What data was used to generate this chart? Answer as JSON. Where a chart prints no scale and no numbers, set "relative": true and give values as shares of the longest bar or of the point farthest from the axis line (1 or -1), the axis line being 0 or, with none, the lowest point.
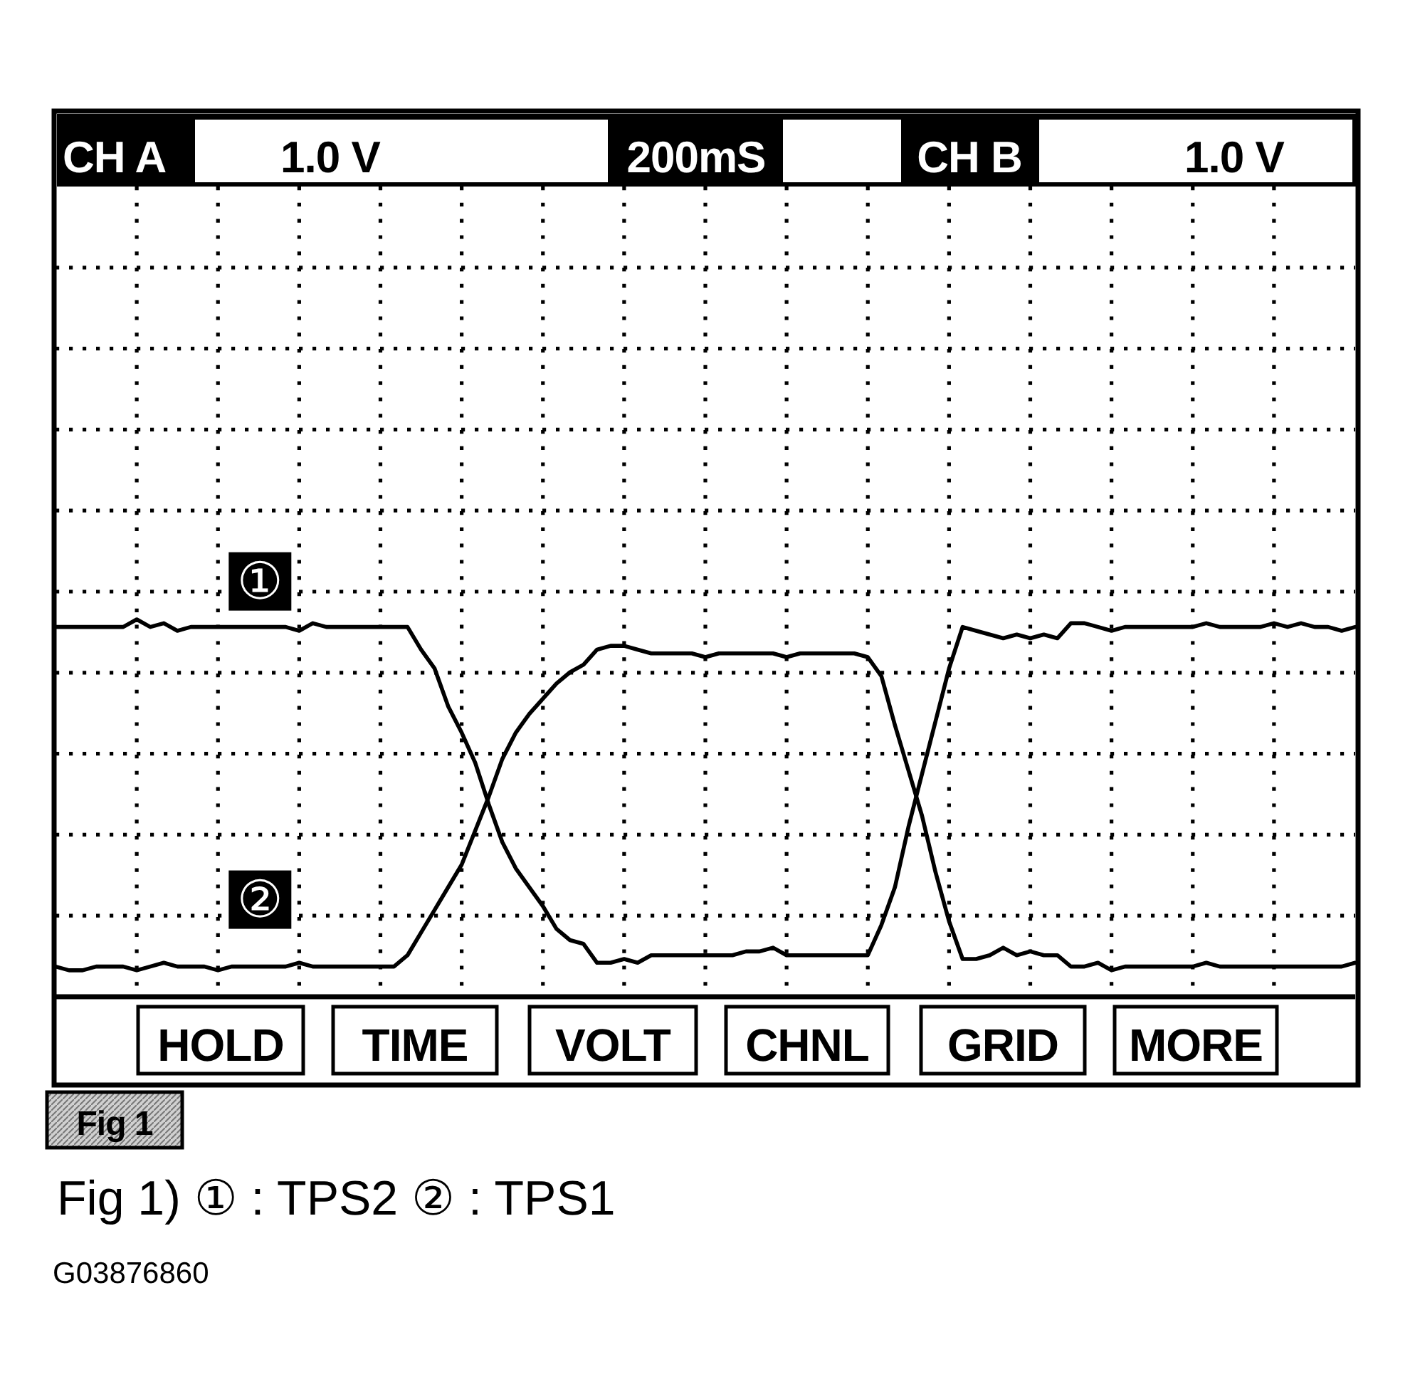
{
  "chart_data": {
    "type": "line",
    "relative": true,
    "grid": true,
    "categories": [
      null,
      null,
      null,
      null,
      null,
      null,
      null,
      null,
      null,
      null,
      null,
      null,
      null,
      null,
      null,
      null,
      null,
      null,
      null,
      null,
      null,
      null,
      null,
      null,
      null,
      null,
      null,
      null,
      null,
      null,
      null,
      null,
      null,
      null,
      null,
      null,
      null,
      null,
      null,
      null,
      null,
      null,
      null,
      null,
      null,
      null,
      null,
      null,
      null,
      null,
      null,
      null,
      null,
      null,
      null,
      null,
      null,
      null,
      null,
      null,
      null,
      null,
      null,
      null,
      null,
      null,
      null,
      null,
      null,
      null,
      null,
      null,
      null,
      null,
      null,
      null,
      null,
      null,
      null,
      null,
      null,
      null,
      null,
      null,
      null,
      null,
      null,
      null,
      null,
      null,
      null,
      null,
      null,
      null,
      null,
      null,
      null
    ],
    "series": [
      {
        "name": "①",
        "color": "#000000",
        "values": [
          0.98,
          0.98,
          0.98,
          0.98,
          0.98,
          0.98,
          1.0,
          0.98,
          0.99,
          0.97,
          0.98,
          0.98,
          0.98,
          0.98,
          0.98,
          0.98,
          0.98,
          0.98,
          0.97,
          0.99,
          0.98,
          0.98,
          0.98,
          0.98,
          0.98,
          0.98,
          0.98,
          0.92,
          0.87,
          0.77,
          0.7,
          0.62,
          0.51,
          0.41,
          0.34,
          0.29,
          0.24,
          0.18,
          0.15,
          0.14,
          0.09,
          0.09,
          0.1,
          0.09,
          0.11,
          0.11,
          0.11,
          0.11,
          0.11,
          0.11,
          0.11,
          0.12,
          0.12,
          0.13,
          0.11,
          0.11,
          0.11,
          0.11,
          0.11,
          0.11,
          0.11,
          0.19,
          0.29,
          0.45,
          0.59,
          0.73,
          0.87,
          0.98,
          0.97,
          0.96,
          0.95,
          0.96,
          0.95,
          0.96,
          0.95,
          0.99,
          0.99,
          0.98,
          0.97,
          0.98,
          0.98,
          0.98,
          0.98,
          0.98,
          0.98,
          0.99,
          0.98,
          0.98,
          0.98,
          0.98,
          0.99,
          0.98,
          0.99,
          0.98,
          0.98,
          0.97,
          0.98
        ]
      },
      {
        "name": "②",
        "color": "#000000",
        "values": [
          0.08,
          0.07,
          0.07,
          0.08,
          0.08,
          0.08,
          0.07,
          0.08,
          0.09,
          0.08,
          0.08,
          0.08,
          0.07,
          0.08,
          0.08,
          0.08,
          0.08,
          0.08,
          0.09,
          0.08,
          0.08,
          0.08,
          0.08,
          0.08,
          0.08,
          0.08,
          0.11,
          0.17,
          0.23,
          0.29,
          0.35,
          0.44,
          0.53,
          0.63,
          0.7,
          0.75,
          0.79,
          0.83,
          0.86,
          0.88,
          0.92,
          0.93,
          0.93,
          0.92,
          0.91,
          0.91,
          0.91,
          0.91,
          0.9,
          0.91,
          0.91,
          0.91,
          0.91,
          0.91,
          0.9,
          0.91,
          0.91,
          0.91,
          0.91,
          0.91,
          0.9,
          0.85,
          0.72,
          0.6,
          0.48,
          0.33,
          0.2,
          0.1,
          0.1,
          0.11,
          0.13,
          0.11,
          0.12,
          0.11,
          0.11,
          0.08,
          0.08,
          0.09,
          0.07,
          0.08,
          0.08,
          0.08,
          0.08,
          0.08,
          0.08,
          0.09,
          0.08,
          0.08,
          0.08,
          0.08,
          0.08,
          0.08,
          0.08,
          0.08,
          0.08,
          0.08,
          0.09
        ]
      }
    ],
    "annotations": [
      "CH A",
      "1.0 V",
      "200mS",
      "CH B",
      "1.0 V",
      "HOLD",
      "TIME",
      "VOLT",
      "CHNL",
      "GRID",
      "MORE",
      "Fig 1",
      "Fig 1) ① : TPS2 ② : TPS1",
      "G03876860"
    ]
  }
}
